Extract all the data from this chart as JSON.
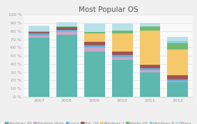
{
  "title": "Most Popular OS",
  "years": [
    "2007",
    "2008",
    "2009",
    "2010",
    "2011",
    "2012"
  ],
  "series": {
    "Windows XP": [
      72,
      76,
      55,
      45,
      30,
      18
    ],
    "Windows Vista": [
      3,
      4,
      5,
      3,
      2,
      1
    ],
    "Linux": [
      2,
      2,
      3,
      3,
      3,
      2
    ],
    "Mac OS": [
      2,
      3,
      4,
      4,
      4,
      5
    ],
    "Windows 7": [
      0,
      0,
      10,
      22,
      42,
      32
    ],
    "Mobile OS": [
      1,
      1,
      2,
      4,
      5,
      7
    ],
    "Windows 8": [
      0,
      0,
      0,
      0,
      0,
      3
    ],
    "Others": [
      7,
      5,
      10,
      8,
      4,
      5
    ]
  },
  "colors": {
    "Windows XP": "#5db8b0",
    "Windows Vista": "#c8a8c8",
    "Linux": "#6aaed6",
    "Mac OS": "#9e5555",
    "Windows 7": "#f5c86a",
    "Mobile OS": "#72b872",
    "Windows 8": "#82d4dc",
    "Others": "#b8e0e8"
  },
  "ylim": [
    0,
    100
  ],
  "ytick_vals": [
    0,
    10,
    20,
    30,
    40,
    50,
    60,
    70,
    80,
    90,
    100
  ],
  "ytick_labels": [
    "0 %",
    "10 %",
    "20 %",
    "30 %",
    "40 %",
    "50 %",
    "60 %",
    "70 %",
    "80 %",
    "90 %",
    "100 %"
  ],
  "background_color": "#f0f0f0",
  "plot_bg_color": "#f9f9f9",
  "title_fontsize": 7.5,
  "legend_fontsize": 4.0,
  "tick_fontsize": 4.5,
  "bar_width": 0.75
}
